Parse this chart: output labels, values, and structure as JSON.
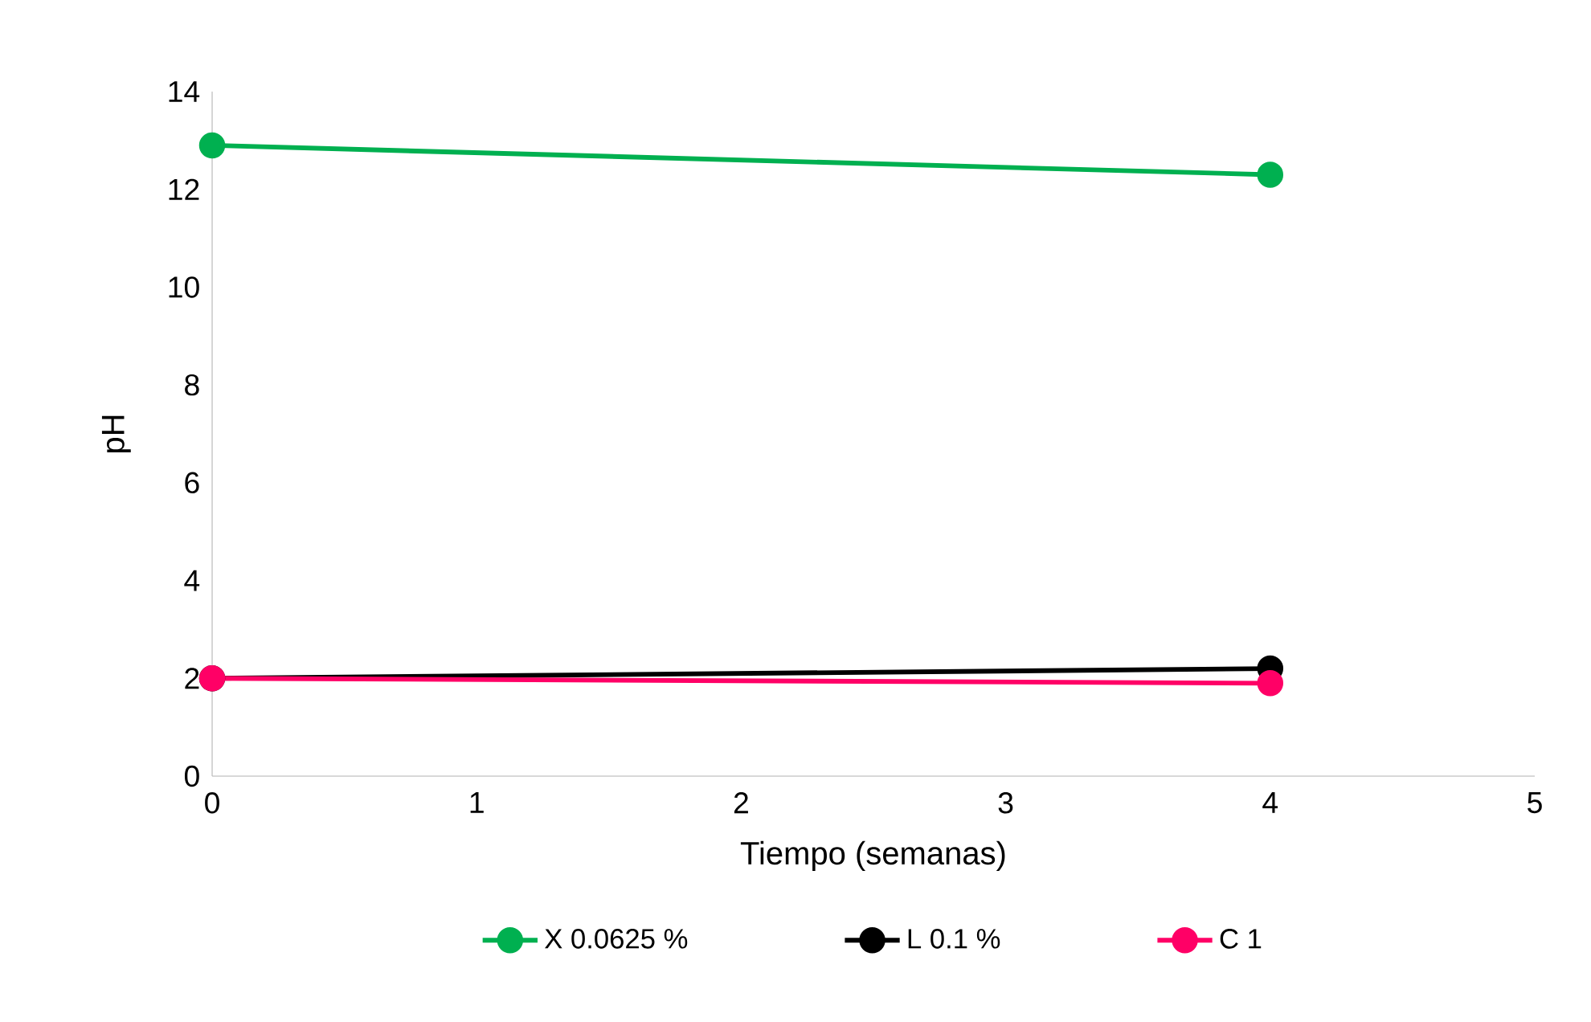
{
  "chart_data": {
    "type": "line",
    "xlabel": "Tiempo (semanas)",
    "ylabel": "pH",
    "x": [
      0,
      4
    ],
    "series": [
      {
        "name": "X 0.0625 %",
        "color": "#00b050",
        "values": [
          12.9,
          12.3
        ]
      },
      {
        "name": "L 0.1 %",
        "color": "#000000",
        "values": [
          2.0,
          2.2
        ]
      },
      {
        "name": "C 1",
        "color": "#ff0066",
        "values": [
          2.0,
          1.9
        ]
      }
    ],
    "xlim": [
      0,
      5
    ],
    "ylim": [
      0,
      14
    ],
    "xticks": [
      0,
      1,
      2,
      3,
      4,
      5
    ],
    "yticks": [
      0,
      2,
      4,
      6,
      8,
      10,
      12,
      14
    ],
    "grid": false,
    "legend": "bottom",
    "marker": "circle",
    "line_style": "solid"
  }
}
